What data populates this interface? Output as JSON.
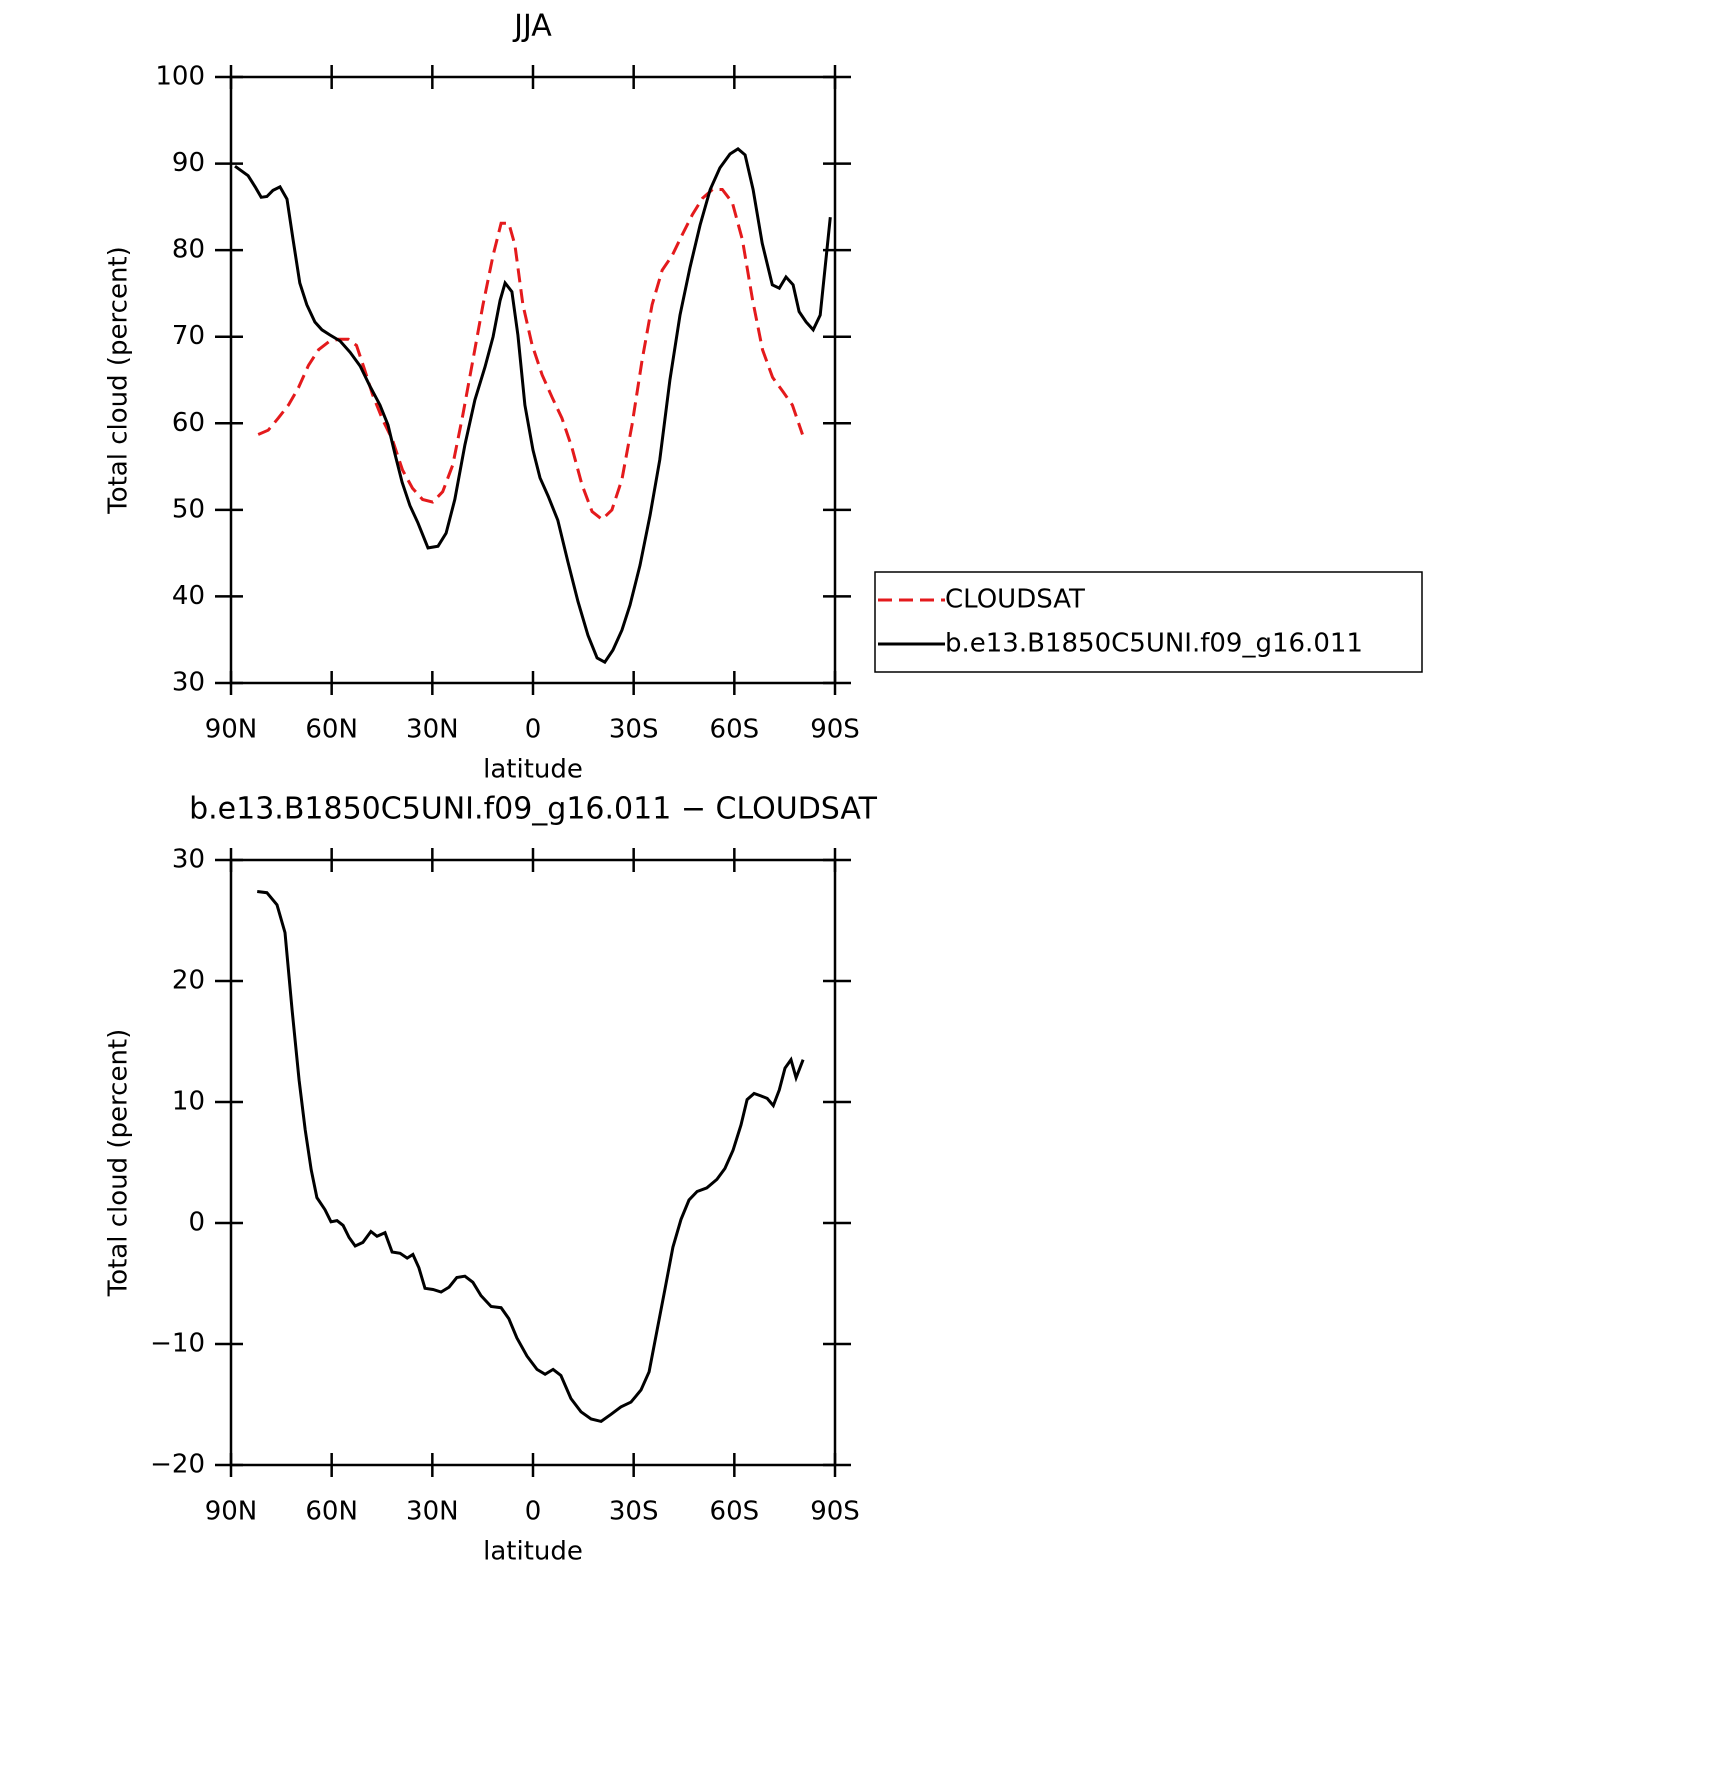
{
  "chart_data": [
    {
      "type": "line",
      "title": "JJA",
      "xlabel": "latitude",
      "ylabel": "Total cloud (percent)",
      "xlim": [
        90,
        -90
      ],
      "xticks": [
        {
          "value": 90,
          "label": "90N"
        },
        {
          "value": 60,
          "label": "60N"
        },
        {
          "value": 30,
          "label": "30N"
        },
        0,
        {
          "value": -30,
          "label": "30S"
        },
        {
          "value": -60,
          "label": "60S"
        },
        {
          "value": -90,
          "label": "90S"
        }
      ],
      "ylim": [
        30,
        100
      ],
      "yticks": [
        30,
        40,
        50,
        60,
        70,
        80,
        90,
        100
      ],
      "legend": "outside-right",
      "series": [
        {
          "name": "CLOUDSAT",
          "color": "#e41a1c",
          "dash": true,
          "x": [
            81.9,
            78.9,
            75.9,
            72.9,
            69.9,
            66.9,
            63.9,
            60.9,
            58,
            55,
            52.6,
            50.2,
            47.8,
            44.8,
            41.9,
            38.9,
            35.9,
            32.9,
            29.9,
            26.9,
            23.9,
            20.9,
            17.9,
            14.9,
            11.9,
            9.5,
            7.2,
            5.4,
            3,
            0.3,
            -2.7,
            -5.7,
            -8.6,
            -11.6,
            -14.6,
            -17.6,
            -20.6,
            -23.5,
            -26.5,
            -29.5,
            -32.5,
            -35.5,
            -38.5,
            -41.5,
            -44.5,
            -47.5,
            -50.5,
            -53.5,
            -56.4,
            -59.4,
            -62.4,
            -65.4,
            -68.4,
            -71.4,
            -74.4,
            -77.3,
            -80.3
          ],
          "values": [
            58.7,
            59.2,
            60.6,
            62.1,
            64.1,
            66.7,
            68.5,
            69.4,
            69.7,
            69.7,
            69,
            66.2,
            63.3,
            60.4,
            58.1,
            54.6,
            52.5,
            51.2,
            50.9,
            52.1,
            55.2,
            61,
            67.3,
            73.7,
            79.4,
            83.1,
            83.1,
            80.6,
            73.7,
            69.1,
            65.6,
            63,
            60.6,
            57.2,
            52.9,
            49.8,
            48.9,
            50,
            53.5,
            59.8,
            67.3,
            73.7,
            77.7,
            79.4,
            81.8,
            84.1,
            86,
            87,
            87,
            85.5,
            81.2,
            74.3,
            68.5,
            65.3,
            63.7,
            62.1,
            58.7
          ]
        },
        {
          "name": "b.e13.B1850C5UNI.f09_g16.011",
          "color": "#000000",
          "dash": false,
          "x": [
            88.8,
            84.9,
            82.8,
            81,
            79.3,
            77.5,
            75.4,
            73.3,
            71.5,
            69.5,
            67.4,
            65,
            62.9,
            60.5,
            57.5,
            54.5,
            51.5,
            48.6,
            45.6,
            43.2,
            41.1,
            39,
            36.7,
            34.3,
            31.3,
            28.3,
            25.9,
            23.3,
            20.3,
            17.3,
            14.3,
            11.9,
            9.8,
            8.3,
            6.3,
            4.5,
            2.4,
            0,
            -2.1,
            -4.5,
            -7.4,
            -10.4,
            -13.4,
            -16.4,
            -19.1,
            -21.4,
            -23.8,
            -26.5,
            -28.9,
            -31.9,
            -34.9,
            -37.8,
            -40.8,
            -43.8,
            -46.8,
            -49.8,
            -52.8,
            -55.7,
            -58.7,
            -61.1,
            -63.2,
            -65.6,
            -68.3,
            -71.3,
            -73.4,
            -75.4,
            -77.5,
            -79.3,
            -81.4,
            -83.5,
            -85.6,
            -88.6
          ],
          "values": [
            89.7,
            88.6,
            87.3,
            86.1,
            86.2,
            86.9,
            87.3,
            85.9,
            81.2,
            76.2,
            73.7,
            71.7,
            70.8,
            70.2,
            69.5,
            68.2,
            66.6,
            64.3,
            62.1,
            59.8,
            56.4,
            53.2,
            50.5,
            48.5,
            45.6,
            45.8,
            47.3,
            51.2,
            57.5,
            62.7,
            66.5,
            70,
            74.2,
            76.2,
            75.2,
            70.2,
            62.1,
            56.9,
            53.7,
            51.6,
            48.8,
            44,
            39.4,
            35.5,
            32.9,
            32.4,
            33.8,
            36.1,
            39,
            43.6,
            49.4,
            55.8,
            65,
            72.5,
            78,
            82.9,
            87,
            89.5,
            91.1,
            91.7,
            91,
            87,
            80.8,
            76,
            75.6,
            76.9,
            76,
            72.9,
            71.7,
            70.8,
            72.5,
            83.8
          ]
        }
      ]
    },
    {
      "type": "line",
      "title": "b.e13.B1850C5UNI.f09_g16.011 − CLOUDSAT",
      "xlabel": "latitude",
      "ylabel": "Total cloud (percent)",
      "xlim": [
        90,
        -90
      ],
      "xticks": [
        {
          "value": 90,
          "label": "90N"
        },
        {
          "value": 60,
          "label": "60N"
        },
        {
          "value": 30,
          "label": "30N"
        },
        0,
        {
          "value": -30,
          "label": "30S"
        },
        {
          "value": -60,
          "label": "60S"
        },
        {
          "value": -90,
          "label": "90S"
        }
      ],
      "ylim": [
        -20,
        30
      ],
      "yticks": [
        {
          "value": -20,
          "label": "−20"
        },
        {
          "value": -10,
          "label": "−10"
        },
        0,
        10,
        20,
        30
      ],
      "series": [
        {
          "color": "#000000",
          "dash": false,
          "x": [
            82.2,
            79.3,
            76.3,
            73.9,
            71.8,
            69.7,
            67.9,
            66.1,
            64.4,
            62,
            60.2,
            58.4,
            56.6,
            54.8,
            53,
            50.7,
            48.3,
            46.5,
            44.1,
            42,
            39.6,
            37.5,
            35.8,
            34,
            32.2,
            29.8,
            27.4,
            25,
            22.7,
            20.3,
            17.9,
            15.5,
            12.5,
            9.5,
            7.2,
            4.8,
            1.8,
            -1.2,
            -3.6,
            -6,
            -8.3,
            -11.3,
            -14.3,
            -17.3,
            -20.3,
            -23.3,
            -26.2,
            -29.2,
            -32.2,
            -34.6,
            -37,
            -39.3,
            -41.7,
            -44.1,
            -46.5,
            -48.9,
            -51.8,
            -54.8,
            -57.2,
            -59.6,
            -62,
            -63.8,
            -65.9,
            -68,
            -69.8,
            -71.6,
            -73.4,
            -75.1,
            -76.9,
            -78.4,
            -80.5
          ],
          "values": [
            27.4,
            27.3,
            26.3,
            24,
            17.6,
            11.8,
            7.7,
            4.4,
            2.1,
            1.1,
            0.1,
            0.2,
            -0.2,
            -1.2,
            -1.9,
            -1.6,
            -0.7,
            -1.1,
            -0.8,
            -2.4,
            -2.5,
            -2.9,
            -2.6,
            -3.7,
            -5.4,
            -5.5,
            -5.7,
            -5.3,
            -4.5,
            -4.4,
            -4.9,
            -6,
            -6.9,
            -7,
            -7.9,
            -9.5,
            -11,
            -12.1,
            -12.5,
            -12.1,
            -12.6,
            -14.5,
            -15.6,
            -16.2,
            -16.4,
            -15.8,
            -15.2,
            -14.8,
            -13.8,
            -12.3,
            -8.8,
            -5.5,
            -2,
            0.3,
            1.9,
            2.6,
            2.9,
            3.6,
            4.5,
            6,
            8.1,
            10.2,
            10.7,
            10.5,
            10.3,
            9.7,
            11,
            12.8,
            13.5,
            12,
            13.5
          ]
        }
      ]
    }
  ]
}
